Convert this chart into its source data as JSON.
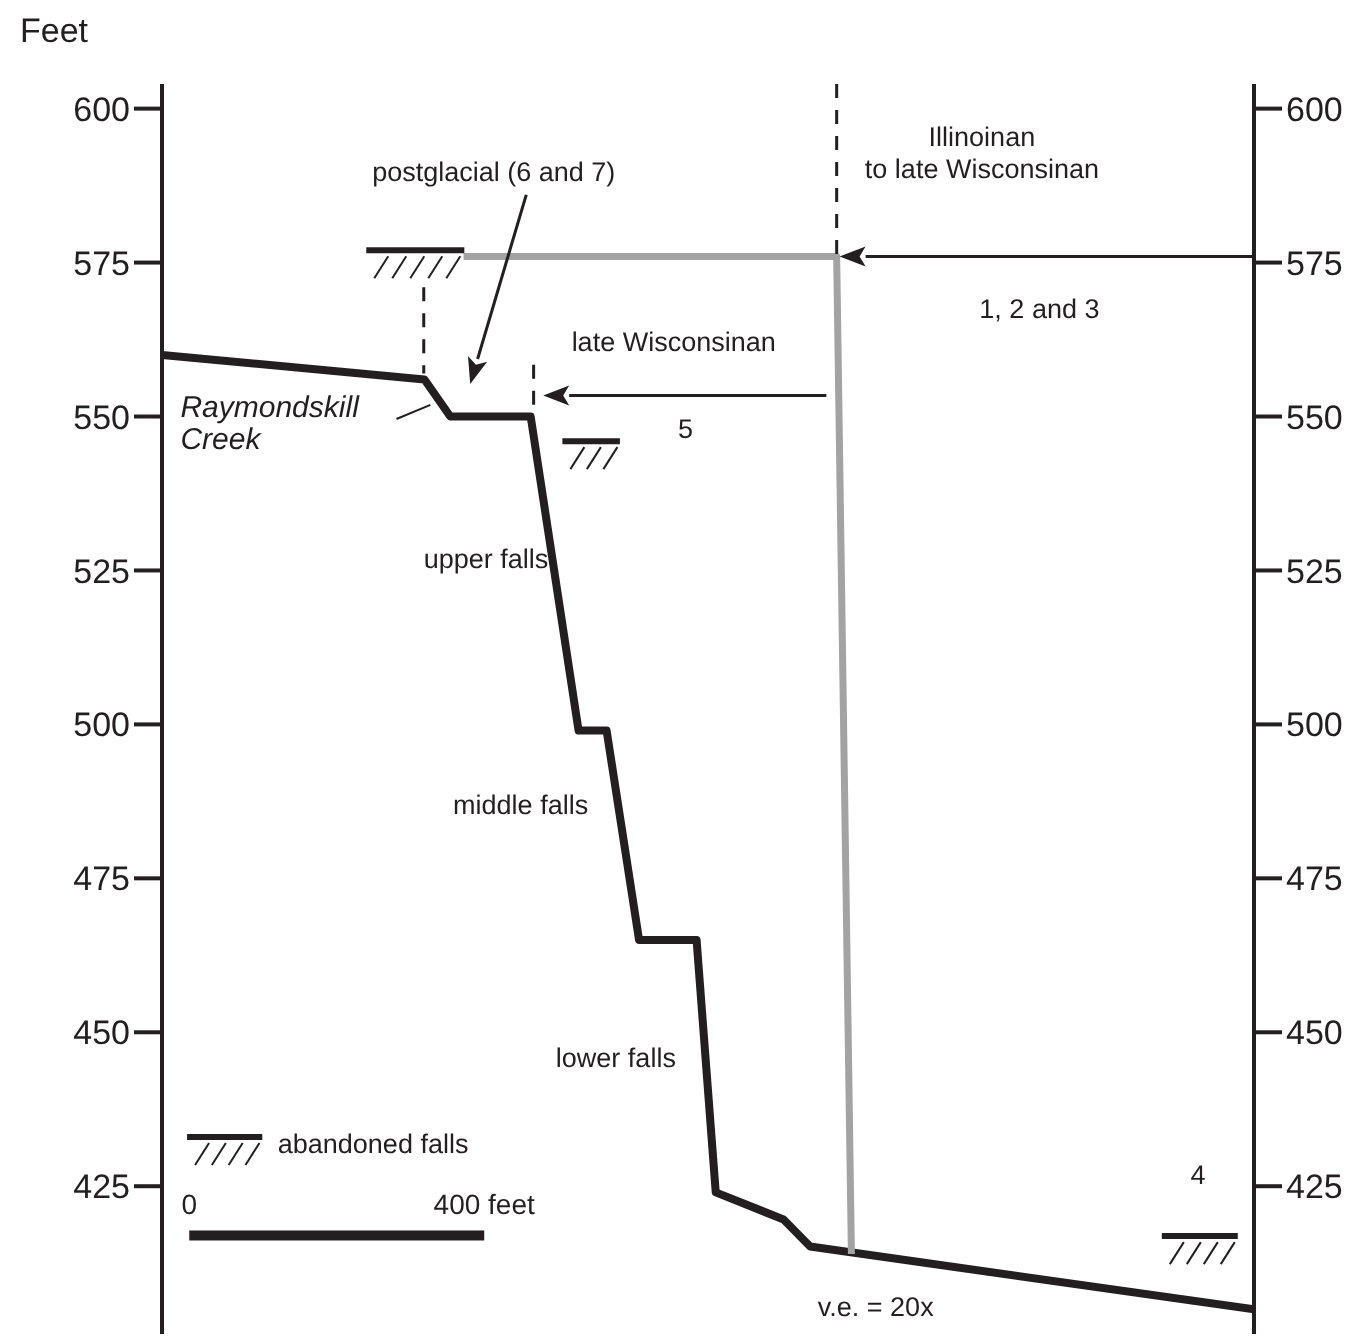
{
  "chart_data": {
    "type": "line",
    "ylabel": "Feet",
    "xlim": [
      -37,
      1444
    ],
    "xticks": [
      {
        "value": 0,
        "label": "0"
      },
      {
        "value": 400,
        "label": "400 feet"
      }
    ],
    "ylim": [
      401,
      604
    ],
    "yticks": [
      425,
      450,
      475,
      500,
      525,
      550,
      575,
      600
    ],
    "y2lim": [
      401,
      604
    ],
    "y2ticks": [
      425,
      450,
      475,
      500,
      525,
      550,
      575,
      600
    ],
    "grid": false,
    "legend": false,
    "marker": "none",
    "line_style": "solid",
    "annotations": [
      "postglacial (6 and 7)",
      "Illinoinan\nto late Wisconsinan",
      "1, 2 and 3",
      "late Wisconsinan",
      "5",
      "Raymondskill\nCreek",
      "upper falls",
      "middle falls",
      "lower falls",
      "abandoned falls",
      "4",
      "v.e. = 20x"
    ],
    "series": [
      {
        "color": "#231f20",
        "x": [
          -37,
          319,
          354,
          463,
          528,
          566,
          610,
          688,
          714,
          806,
          842,
          1444
        ],
        "values": [
          560,
          556,
          550,
          550,
          499,
          499,
          465,
          465,
          424,
          419.6,
          415.2,
          405
        ]
      },
      {
        "color": "#a3a3a3",
        "x": [
          372,
          878,
          898
        ],
        "values": [
          576,
          576,
          414
        ]
      }
    ]
  }
}
